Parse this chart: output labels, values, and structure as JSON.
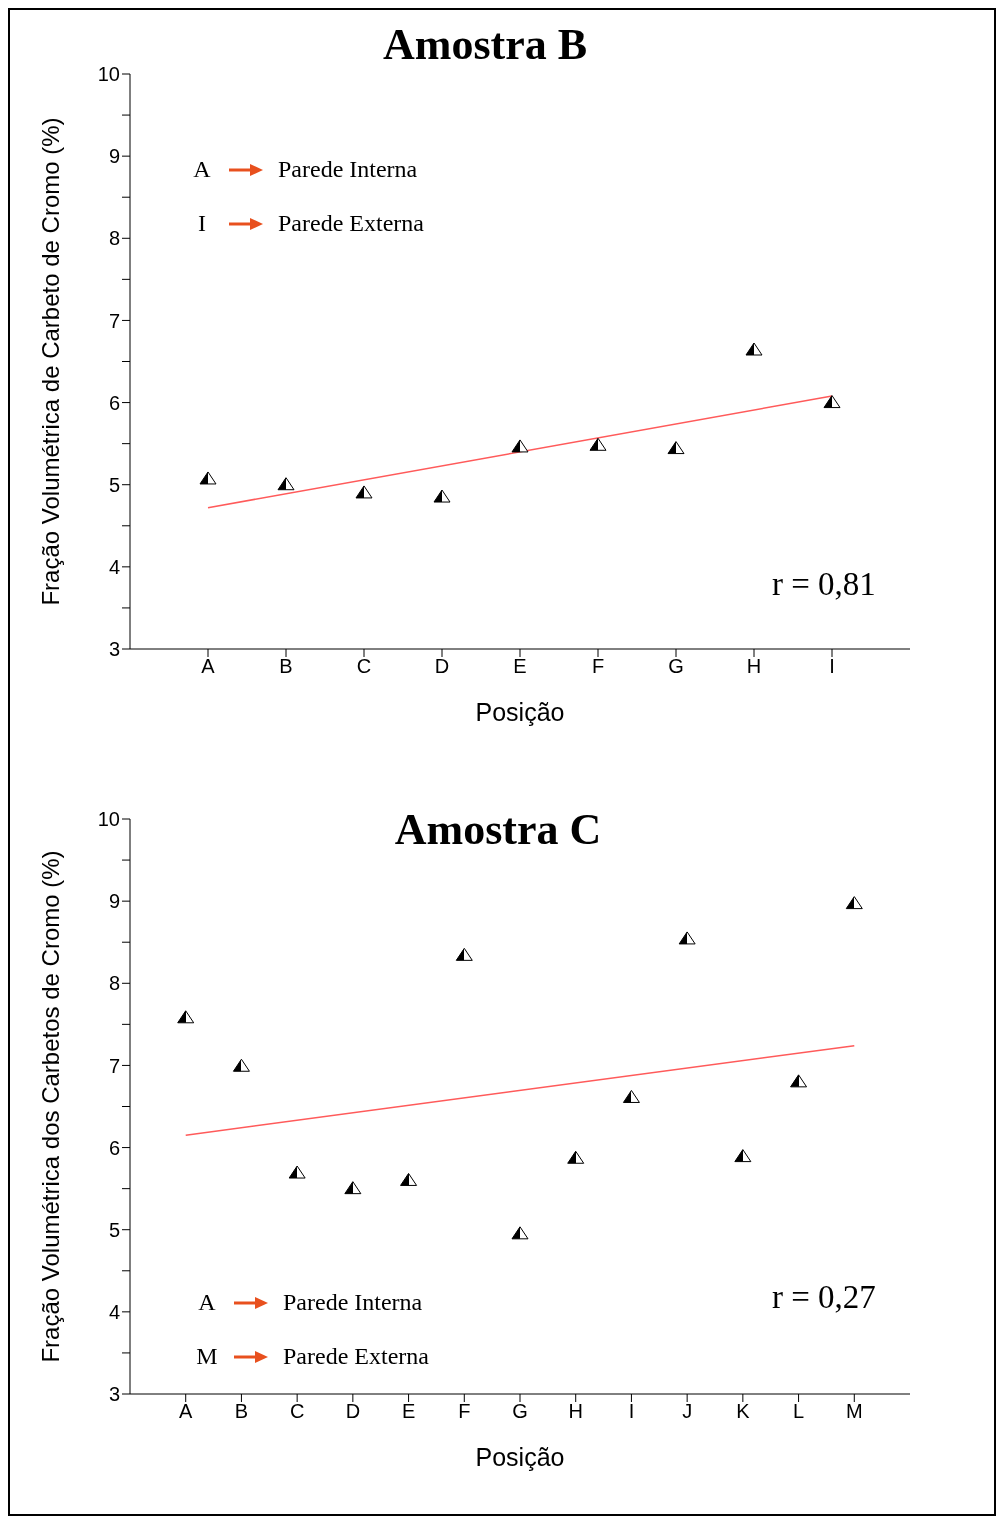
{
  "chart_data": [
    {
      "type": "scatter",
      "title": "Amostra B",
      "xlabel": "Posição",
      "ylabel": "Fração Volumétrica de Carbeto de Cromo (%)",
      "categories": [
        "A",
        "B",
        "C",
        "D",
        "E",
        "F",
        "G",
        "H",
        "I"
      ],
      "series": [
        {
          "color": "#000000",
          "marker": "triangle",
          "values": [
            5.07,
            5.0,
            4.9,
            4.85,
            5.46,
            5.48,
            5.44,
            6.64,
            6.0
          ]
        },
        {
          "type": "line",
          "color": "#ff5a5a",
          "x": [
            "A",
            "I"
          ],
          "values": [
            4.72,
            6.08
          ],
          "marker": "none",
          "line_style": "solid"
        }
      ],
      "ylim": [
        3,
        10
      ],
      "yticks": [
        3,
        {
          "value": 3.5,
          "label": null
        },
        4,
        {
          "value": 4.5,
          "label": null
        },
        5,
        {
          "value": 5.5,
          "label": null
        },
        6,
        {
          "value": 6.5,
          "label": null
        },
        7,
        {
          "value": 7.5,
          "label": null
        },
        8,
        {
          "value": 8.5,
          "label": null
        },
        9,
        {
          "value": 9.5,
          "label": null
        },
        10
      ],
      "grid": false,
      "legend": false,
      "annotations": [
        "A",
        "Parede Interna",
        "I",
        "Parede Externa",
        "r = 0,81"
      ]
    },
    {
      "type": "scatter",
      "title": "Amostra C",
      "xlabel": "Posição",
      "ylabel": "Fração Volumétrica dos Carbetos de Cromo (%)",
      "categories": [
        "A",
        "B",
        "C",
        "D",
        "E",
        "F",
        "G",
        "H",
        "I",
        "J",
        "K",
        "L",
        "M"
      ],
      "series": [
        {
          "color": "#000000",
          "marker": "triangle",
          "values": [
            7.58,
            6.99,
            5.69,
            5.5,
            5.6,
            8.34,
            4.95,
            5.87,
            6.61,
            8.54,
            5.89,
            6.8,
            8.97
          ]
        },
        {
          "type": "line",
          "color": "#ff5a5a",
          "x": [
            "A",
            "M"
          ],
          "values": [
            6.15,
            7.24
          ],
          "marker": "none",
          "line_style": "solid"
        }
      ],
      "ylim": [
        3,
        10
      ],
      "yticks": [
        3,
        {
          "value": 3.5,
          "label": null
        },
        4,
        {
          "value": 4.5,
          "label": null
        },
        5,
        {
          "value": 5.5,
          "label": null
        },
        6,
        {
          "value": 6.5,
          "label": null
        },
        7,
        {
          "value": 7.5,
          "label": null
        },
        8,
        {
          "value": 8.5,
          "label": null
        },
        9,
        {
          "value": 9.5,
          "label": null
        },
        10
      ],
      "grid": false,
      "legend": false,
      "annotations": [
        "A",
        "Parede Interna",
        "M",
        "Parede Externa",
        "r = 0,27"
      ]
    }
  ]
}
